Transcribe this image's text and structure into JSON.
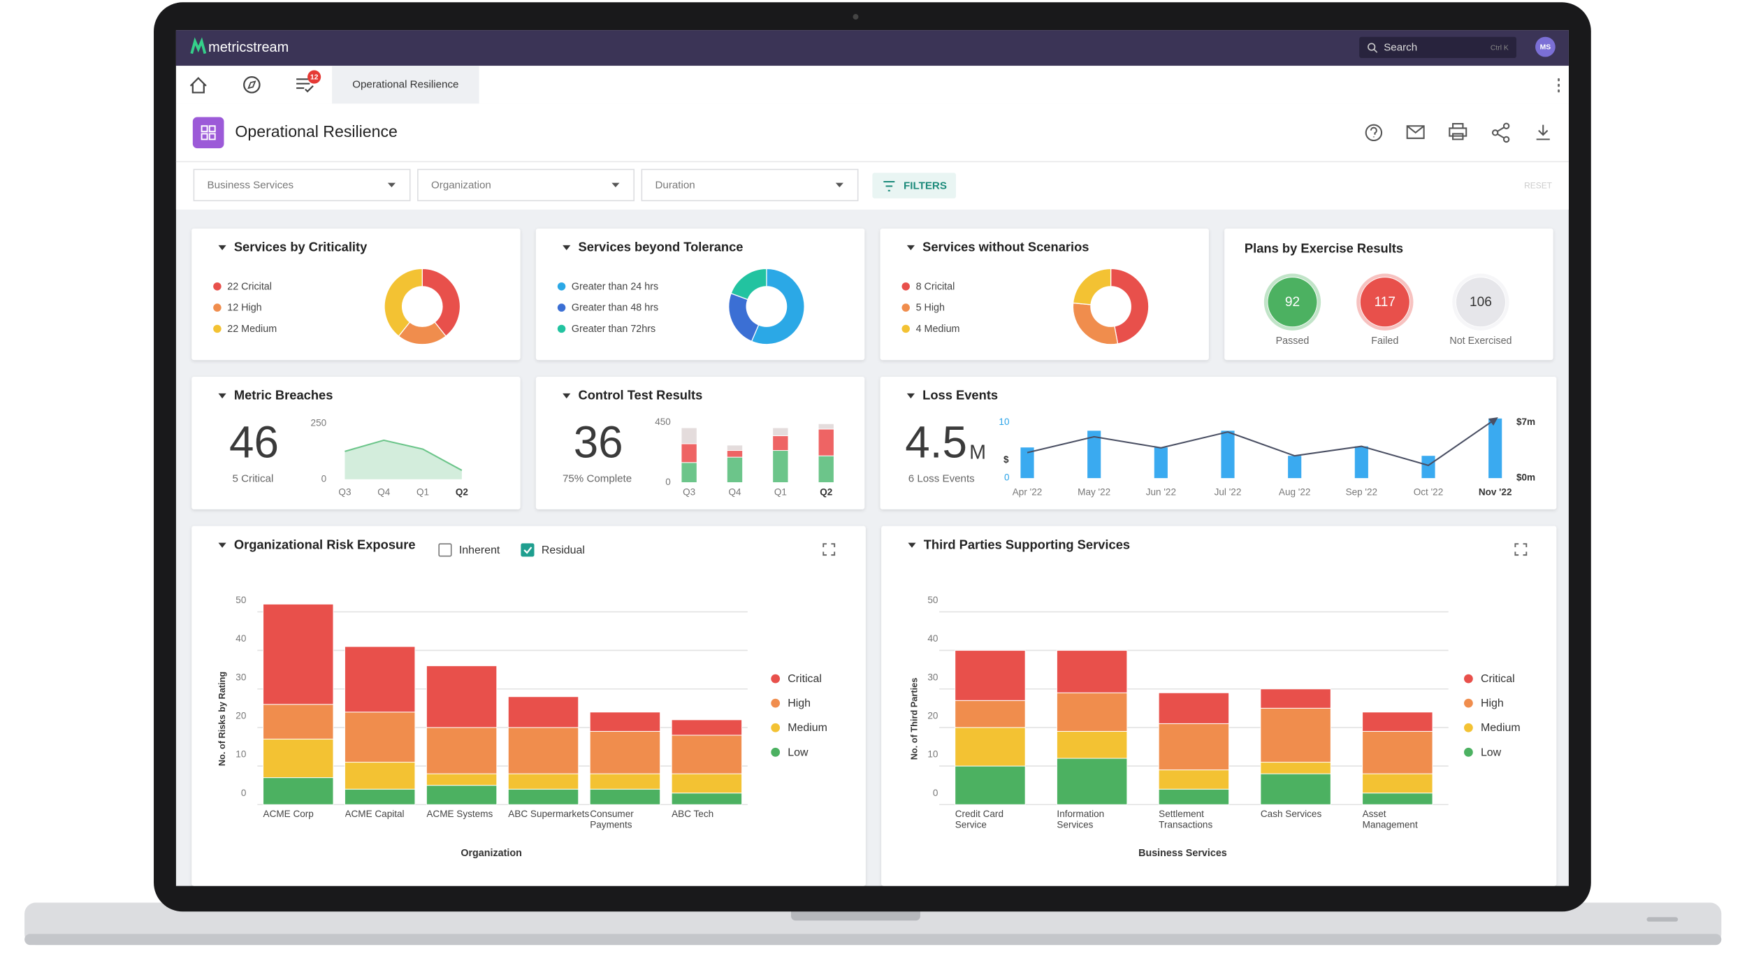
{
  "header": {
    "brand": "metricstream",
    "search": "Search",
    "shortcut": "Ctrl K",
    "avatar": "MS"
  },
  "nav": {
    "badge": 12,
    "tab": "Operational Resilience"
  },
  "page": {
    "title": "Operational Resilience",
    "filters": [
      "Business Services",
      "Organization",
      "Duration"
    ],
    "filter_button": "FILTERS",
    "reset": "RESET"
  },
  "chart_data": [
    {
      "type": "donut",
      "title": "Services by Criticality",
      "value_labels": [
        "22 Cricital",
        "12 High",
        "22 Medium"
      ],
      "values": [
        22,
        12,
        22
      ],
      "colors": [
        "#e8504b",
        "#f08d4d",
        "#f3c233"
      ]
    },
    {
      "type": "donut",
      "title": "Services beyond Tolerance",
      "categories": [
        "Greater than 24 hrs",
        "Greater than 48 hrs",
        "Greater than 72hrs"
      ],
      "values": [
        35,
        15,
        12
      ],
      "colors": [
        "#2ba8e6",
        "#3b6fd4",
        "#22c3a0"
      ]
    },
    {
      "type": "donut",
      "title": "Services without Scenarios",
      "value_labels": [
        "8 Cricital",
        "5 High",
        "4 Medium"
      ],
      "values": [
        8,
        5,
        4
      ],
      "colors": [
        "#e8504b",
        "#f08d4d",
        "#f3c233"
      ]
    },
    {
      "type": "kpi",
      "title": "Plans by Exercise Results",
      "categories": [
        "Passed",
        "Failed",
        "Not Exercised"
      ],
      "values": [
        92,
        117,
        106
      ],
      "colors": [
        "#4cb161",
        "#e8504b",
        "#e6e6ea"
      ]
    },
    {
      "type": "area",
      "title": "Metric Breaches",
      "kpi": 46,
      "kpi_label": "5 Critical",
      "categories": [
        "Q3",
        "Q4",
        "Q1",
        "Q2"
      ],
      "values": [
        125,
        175,
        135,
        40
      ],
      "ylim": [
        0,
        250
      ],
      "yticks": [
        0,
        250
      ],
      "color": "#6cc58a"
    },
    {
      "type": "stacked_bar",
      "title": "Control Test Results",
      "kpi": 36,
      "kpi_label": "75% Complete",
      "categories": [
        "Q3",
        "Q4",
        "Q1",
        "Q2"
      ],
      "series": [
        {
          "color": "#6cc58a",
          "values": [
            150,
            190,
            240,
            200
          ]
        },
        {
          "color": "#ee6464",
          "values": [
            140,
            50,
            110,
            200
          ]
        },
        {
          "color": "#e4dcdc",
          "values": [
            120,
            40,
            60,
            40
          ]
        }
      ],
      "ylim": [
        0,
        450
      ],
      "yticks": [
        0,
        450
      ]
    },
    {
      "type": "bar_line",
      "title": "Loss Events",
      "kpi": 4.5,
      "kpi_unit": "M",
      "kpi_label": "6 Loss Events",
      "categories": [
        "Apr '22",
        "May '22",
        "Jun '22",
        "Jul '22",
        "Aug '22",
        "Sep '22",
        "Oct '22",
        "Nov '22"
      ],
      "series": [
        {
          "color": "#3aaaf0",
          "values": [
            5.5,
            8.5,
            5.5,
            8.5,
            4,
            5.7,
            4,
            10.7
          ]
        },
        {
          "color": "#4a4f63",
          "axis": "y2",
          "values": [
            3.2,
            5.2,
            3.8,
            5.8,
            2.8,
            4,
            1.6,
            7.4
          ]
        }
      ],
      "ylabel": "$",
      "ylim": [
        0,
        10
      ],
      "yticks": [
        0,
        10
      ],
      "y2lim": [
        0,
        7
      ],
      "y2ticks": [
        {
          "value": 0,
          "label": "$0m"
        },
        {
          "value": 7,
          "label": "$7m"
        }
      ]
    },
    {
      "type": "stacked_bar",
      "title": "Organizational Risk Exposure",
      "toggles": [
        {
          "label": "Inherent",
          "checked": false
        },
        {
          "label": "Residual",
          "checked": true
        }
      ],
      "categories": [
        "ACME Corp",
        "ACME Capital",
        "ACME Systems",
        "ABC Supermarkets",
        "Consumer Payments",
        "ABC Tech"
      ],
      "xlabel": "Organization",
      "ylabel": "No. of Risks by Rating",
      "ylim": [
        0,
        50
      ],
      "yticks": [
        0,
        10,
        20,
        30,
        40,
        50
      ],
      "grid": true,
      "legend": "right",
      "series": [
        {
          "name": "Low",
          "color": "#4cb161",
          "values": [
            7,
            4,
            5,
            4,
            4,
            3
          ]
        },
        {
          "name": "Medium",
          "color": "#f3c233",
          "values": [
            10,
            7,
            3,
            4,
            4,
            5
          ]
        },
        {
          "name": "High",
          "color": "#f08d4d",
          "values": [
            9,
            13,
            12,
            12,
            11,
            10
          ]
        },
        {
          "name": "Critical",
          "color": "#e8504b",
          "values": [
            26,
            17,
            16,
            8,
            5,
            4
          ]
        }
      ]
    },
    {
      "type": "stacked_bar",
      "title": "Third Parties Supporting Services",
      "categories": [
        "Credit Card Service",
        "Information Services",
        "Settlement Transactions",
        "Cash Services",
        "Asset Management"
      ],
      "xlabel": "Business Services",
      "ylabel": "No. of Third Parties",
      "ylim": [
        0,
        50
      ],
      "yticks": [
        0,
        10,
        20,
        30,
        40,
        50
      ],
      "grid": true,
      "legend": "right",
      "series": [
        {
          "name": "Low",
          "color": "#4cb161",
          "values": [
            10,
            12,
            4,
            8,
            3
          ]
        },
        {
          "name": "Medium",
          "color": "#f3c233",
          "values": [
            10,
            7,
            5,
            3,
            5
          ]
        },
        {
          "name": "High",
          "color": "#f08d4d",
          "values": [
            7,
            10,
            12,
            14,
            11
          ]
        },
        {
          "name": "Critical",
          "color": "#e8504b",
          "values": [
            13,
            11,
            8,
            5,
            5
          ]
        }
      ]
    }
  ]
}
